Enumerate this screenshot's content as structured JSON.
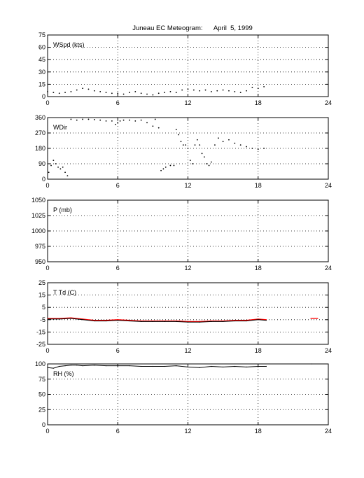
{
  "figure": {
    "title": "Juneau EC Meteogram:      April  5, 1999"
  },
  "chart_data": [
    {
      "type": "scatter",
      "label": "WSpd (kts)",
      "xlim": [
        0,
        24
      ],
      "ylim": [
        0,
        75
      ],
      "xticks": [
        0,
        6,
        12,
        18,
        24
      ],
      "yticks": [
        0,
        15,
        30,
        45,
        60,
        75
      ],
      "grid": true,
      "series": [
        {
          "color": "#000000",
          "x": [
            0,
            0.5,
            1,
            1.5,
            2,
            2.5,
            3,
            3.5,
            4,
            4.5,
            5,
            5.5,
            6,
            6.5,
            7,
            7.5,
            8,
            8.5,
            9,
            9.5,
            10,
            10.5,
            11,
            11.5,
            12,
            12.5,
            13,
            13.5,
            14,
            14.5,
            15,
            15.5,
            16,
            16.5,
            17,
            17.5,
            18,
            18.5
          ],
          "y": [
            6,
            5,
            4,
            5,
            6,
            8,
            10,
            9,
            7,
            6,
            5,
            4,
            4,
            3,
            5,
            6,
            4,
            3,
            2,
            4,
            5,
            6,
            5,
            8,
            9,
            8,
            7,
            8,
            6,
            7,
            8,
            7,
            6,
            5,
            7,
            11,
            10,
            12
          ]
        }
      ]
    },
    {
      "type": "scatter",
      "label": "WDir",
      "xlim": [
        0,
        24
      ],
      "ylim": [
        0,
        360
      ],
      "xticks": [
        0,
        6,
        12,
        18,
        24
      ],
      "yticks": [
        0,
        90,
        180,
        270,
        360
      ],
      "grid": true,
      "series": [
        {
          "color": "#000000",
          "x": [
            0.1,
            0.3,
            0.5,
            0.7,
            0.9,
            1.1,
            1.3,
            1.5,
            1.7,
            2,
            2.5,
            3,
            3.5,
            4,
            4.5,
            5,
            5.5,
            5.8,
            6,
            6.2,
            6.5,
            7,
            7.5,
            8,
            8.5,
            9,
            9.2,
            9.5,
            9.7,
            9.9,
            10.1,
            10.5,
            10.8,
            11,
            11.2,
            11.4,
            11.6,
            11.8,
            12,
            12.2,
            12.4,
            12.6,
            12.8,
            13,
            13.2,
            13.4,
            13.6,
            13.8,
            14,
            14.3,
            14.6,
            15,
            15.5,
            16,
            16.5,
            17,
            17.5,
            18,
            18.5
          ],
          "y": [
            40,
            80,
            110,
            90,
            70,
            60,
            70,
            40,
            20,
            350,
            345,
            350,
            350,
            348,
            345,
            340,
            340,
            320,
            330,
            340,
            345,
            345,
            340,
            345,
            330,
            310,
            350,
            300,
            50,
            60,
            70,
            80,
            80,
            290,
            260,
            220,
            200,
            200,
            180,
            110,
            90,
            200,
            230,
            200,
            150,
            130,
            90,
            80,
            100,
            200,
            240,
            220,
            230,
            210,
            200,
            190,
            180,
            175,
            180
          ]
        }
      ]
    },
    {
      "type": "scatter",
      "label": "P (mb)",
      "xlim": [
        0,
        24
      ],
      "ylim": [
        950,
        1050
      ],
      "xticks": [
        0,
        6,
        12,
        18,
        24
      ],
      "yticks": [
        950,
        975,
        1000,
        1025,
        1050
      ],
      "grid": true,
      "series": []
    },
    {
      "type": "line",
      "label": "T Td (C)",
      "xlim": [
        0,
        24
      ],
      "ylim": [
        -25,
        25
      ],
      "xticks": [
        0,
        6,
        12,
        18,
        24
      ],
      "yticks": [
        -25,
        -15,
        -5,
        5,
        15,
        25
      ],
      "grid": true,
      "series": [
        {
          "color": "#ff0000",
          "x": [
            0,
            1,
            2,
            3,
            4,
            5,
            6,
            7,
            8,
            9,
            10,
            11,
            12,
            13,
            14,
            15,
            16,
            17,
            18,
            18.7
          ],
          "y": [
            -4,
            -4,
            -3.5,
            -4.5,
            -5.5,
            -5.5,
            -5,
            -5.5,
            -6,
            -6,
            -6,
            -6,
            -6.5,
            -6.5,
            -6,
            -6,
            -5.5,
            -5.5,
            -4.5,
            -5
          ]
        },
        {
          "color": "#000000",
          "x": [
            0,
            1,
            2,
            3,
            4,
            5,
            6,
            7,
            8,
            9,
            10,
            11,
            12,
            13,
            14,
            15,
            16,
            17,
            18,
            18.7
          ],
          "y": [
            -4.5,
            -4.5,
            -4,
            -5,
            -6,
            -6,
            -5.5,
            -6,
            -6.5,
            -6.5,
            -6.5,
            -6.5,
            -7,
            -7,
            -6.5,
            -6.5,
            -6,
            -6,
            -5,
            -5.5
          ]
        },
        {
          "color": "#ff0000",
          "x": [
            22.5,
            23.1
          ],
          "y": [
            -4,
            -4
          ]
        }
      ]
    },
    {
      "type": "line",
      "label": "RH (%)",
      "xlim": [
        0,
        24
      ],
      "ylim": [
        0,
        100
      ],
      "xticks": [
        0,
        6,
        12,
        18,
        24
      ],
      "yticks": [
        0,
        25,
        50,
        75,
        100
      ],
      "grid": true,
      "series": [
        {
          "color": "#000000",
          "x": [
            0,
            0.5,
            1,
            1.5,
            2,
            2.5,
            3,
            4,
            5,
            6,
            7,
            8,
            9,
            10,
            11,
            12,
            13,
            14,
            15,
            16,
            17,
            18,
            18.7
          ],
          "y": [
            94,
            93,
            96,
            97,
            98,
            98,
            97,
            98,
            97,
            97,
            97,
            96,
            96,
            96,
            97,
            95,
            94,
            96,
            95,
            96,
            95,
            96,
            96
          ]
        },
        {
          "color": "#000000",
          "x": [
            22.6
          ],
          "y": [
            100
          ]
        }
      ]
    }
  ]
}
